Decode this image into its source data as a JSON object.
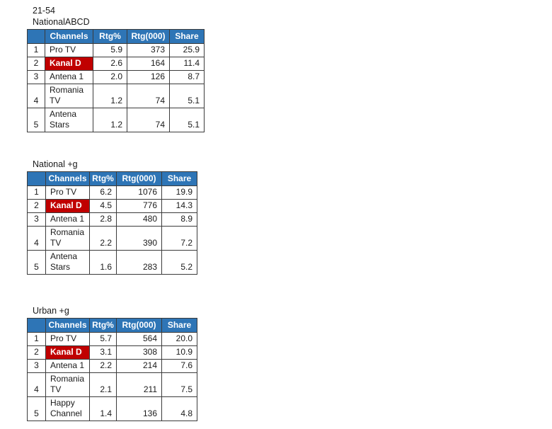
{
  "colors": {
    "header_bg": "#2e75b6",
    "header_text": "#ffffff",
    "highlight_bg": "#c00000",
    "highlight_text": "#ffffff",
    "border": "#3b3b3b",
    "text": "#1a1a1a"
  },
  "blocks": [
    {
      "titles": [
        "21-54",
        "NationalABCD"
      ],
      "columns": [
        "",
        "Channels",
        "Rtg%",
        "Rtg(000)",
        "Share"
      ],
      "rows": [
        {
          "rank": "1",
          "channel": "Pro TV",
          "rtg": "5.9",
          "rtg000": "373",
          "share": "25.9"
        },
        {
          "rank": "2",
          "channel": "Kanal D",
          "rtg": "2.6",
          "rtg000": "164",
          "share": "11.4"
        },
        {
          "rank": "3",
          "channel": "Antena 1",
          "rtg": "2.0",
          "rtg000": "126",
          "share": "8.7"
        },
        {
          "rank": "4",
          "channel": "Romania TV",
          "rtg": "1.2",
          "rtg000": "74",
          "share": "5.1"
        },
        {
          "rank": "5",
          "channel": "Antena Stars",
          "rtg": "1.2",
          "rtg000": "74",
          "share": "5.1"
        }
      ]
    },
    {
      "titles": [
        "National +g"
      ],
      "columns": [
        "",
        "Channels",
        "Rtg%",
        "Rtg(000)",
        "Share"
      ],
      "rows": [
        {
          "rank": "1",
          "channel": "Pro TV",
          "rtg": "6.2",
          "rtg000": "1076",
          "share": "19.9"
        },
        {
          "rank": "2",
          "channel": "Kanal D",
          "rtg": "4.5",
          "rtg000": "776",
          "share": "14.3"
        },
        {
          "rank": "3",
          "channel": "Antena 1",
          "rtg": "2.8",
          "rtg000": "480",
          "share": "8.9"
        },
        {
          "rank": "4",
          "channel": "Romania TV",
          "rtg": "2.2",
          "rtg000": "390",
          "share": "7.2"
        },
        {
          "rank": "5",
          "channel": "Antena Stars",
          "rtg": "1.6",
          "rtg000": "283",
          "share": "5.2"
        }
      ]
    },
    {
      "titles": [
        "Urban +g"
      ],
      "columns": [
        "",
        "Channels",
        "Rtg%",
        "Rtg(000)",
        "Share"
      ],
      "rows": [
        {
          "rank": "1",
          "channel": "Pro TV",
          "rtg": "5.7",
          "rtg000": "564",
          "share": "20.0"
        },
        {
          "rank": "2",
          "channel": "Kanal D",
          "rtg": "3.1",
          "rtg000": "308",
          "share": "10.9"
        },
        {
          "rank": "3",
          "channel": "Antena 1",
          "rtg": "2.2",
          "rtg000": "214",
          "share": "7.6"
        },
        {
          "rank": "4",
          "channel": "Romania TV",
          "rtg": "2.1",
          "rtg000": "211",
          "share": "7.5"
        },
        {
          "rank": "5",
          "channel": "Happy Channel",
          "rtg": "1.4",
          "rtg000": "136",
          "share": "4.8"
        }
      ]
    }
  ]
}
